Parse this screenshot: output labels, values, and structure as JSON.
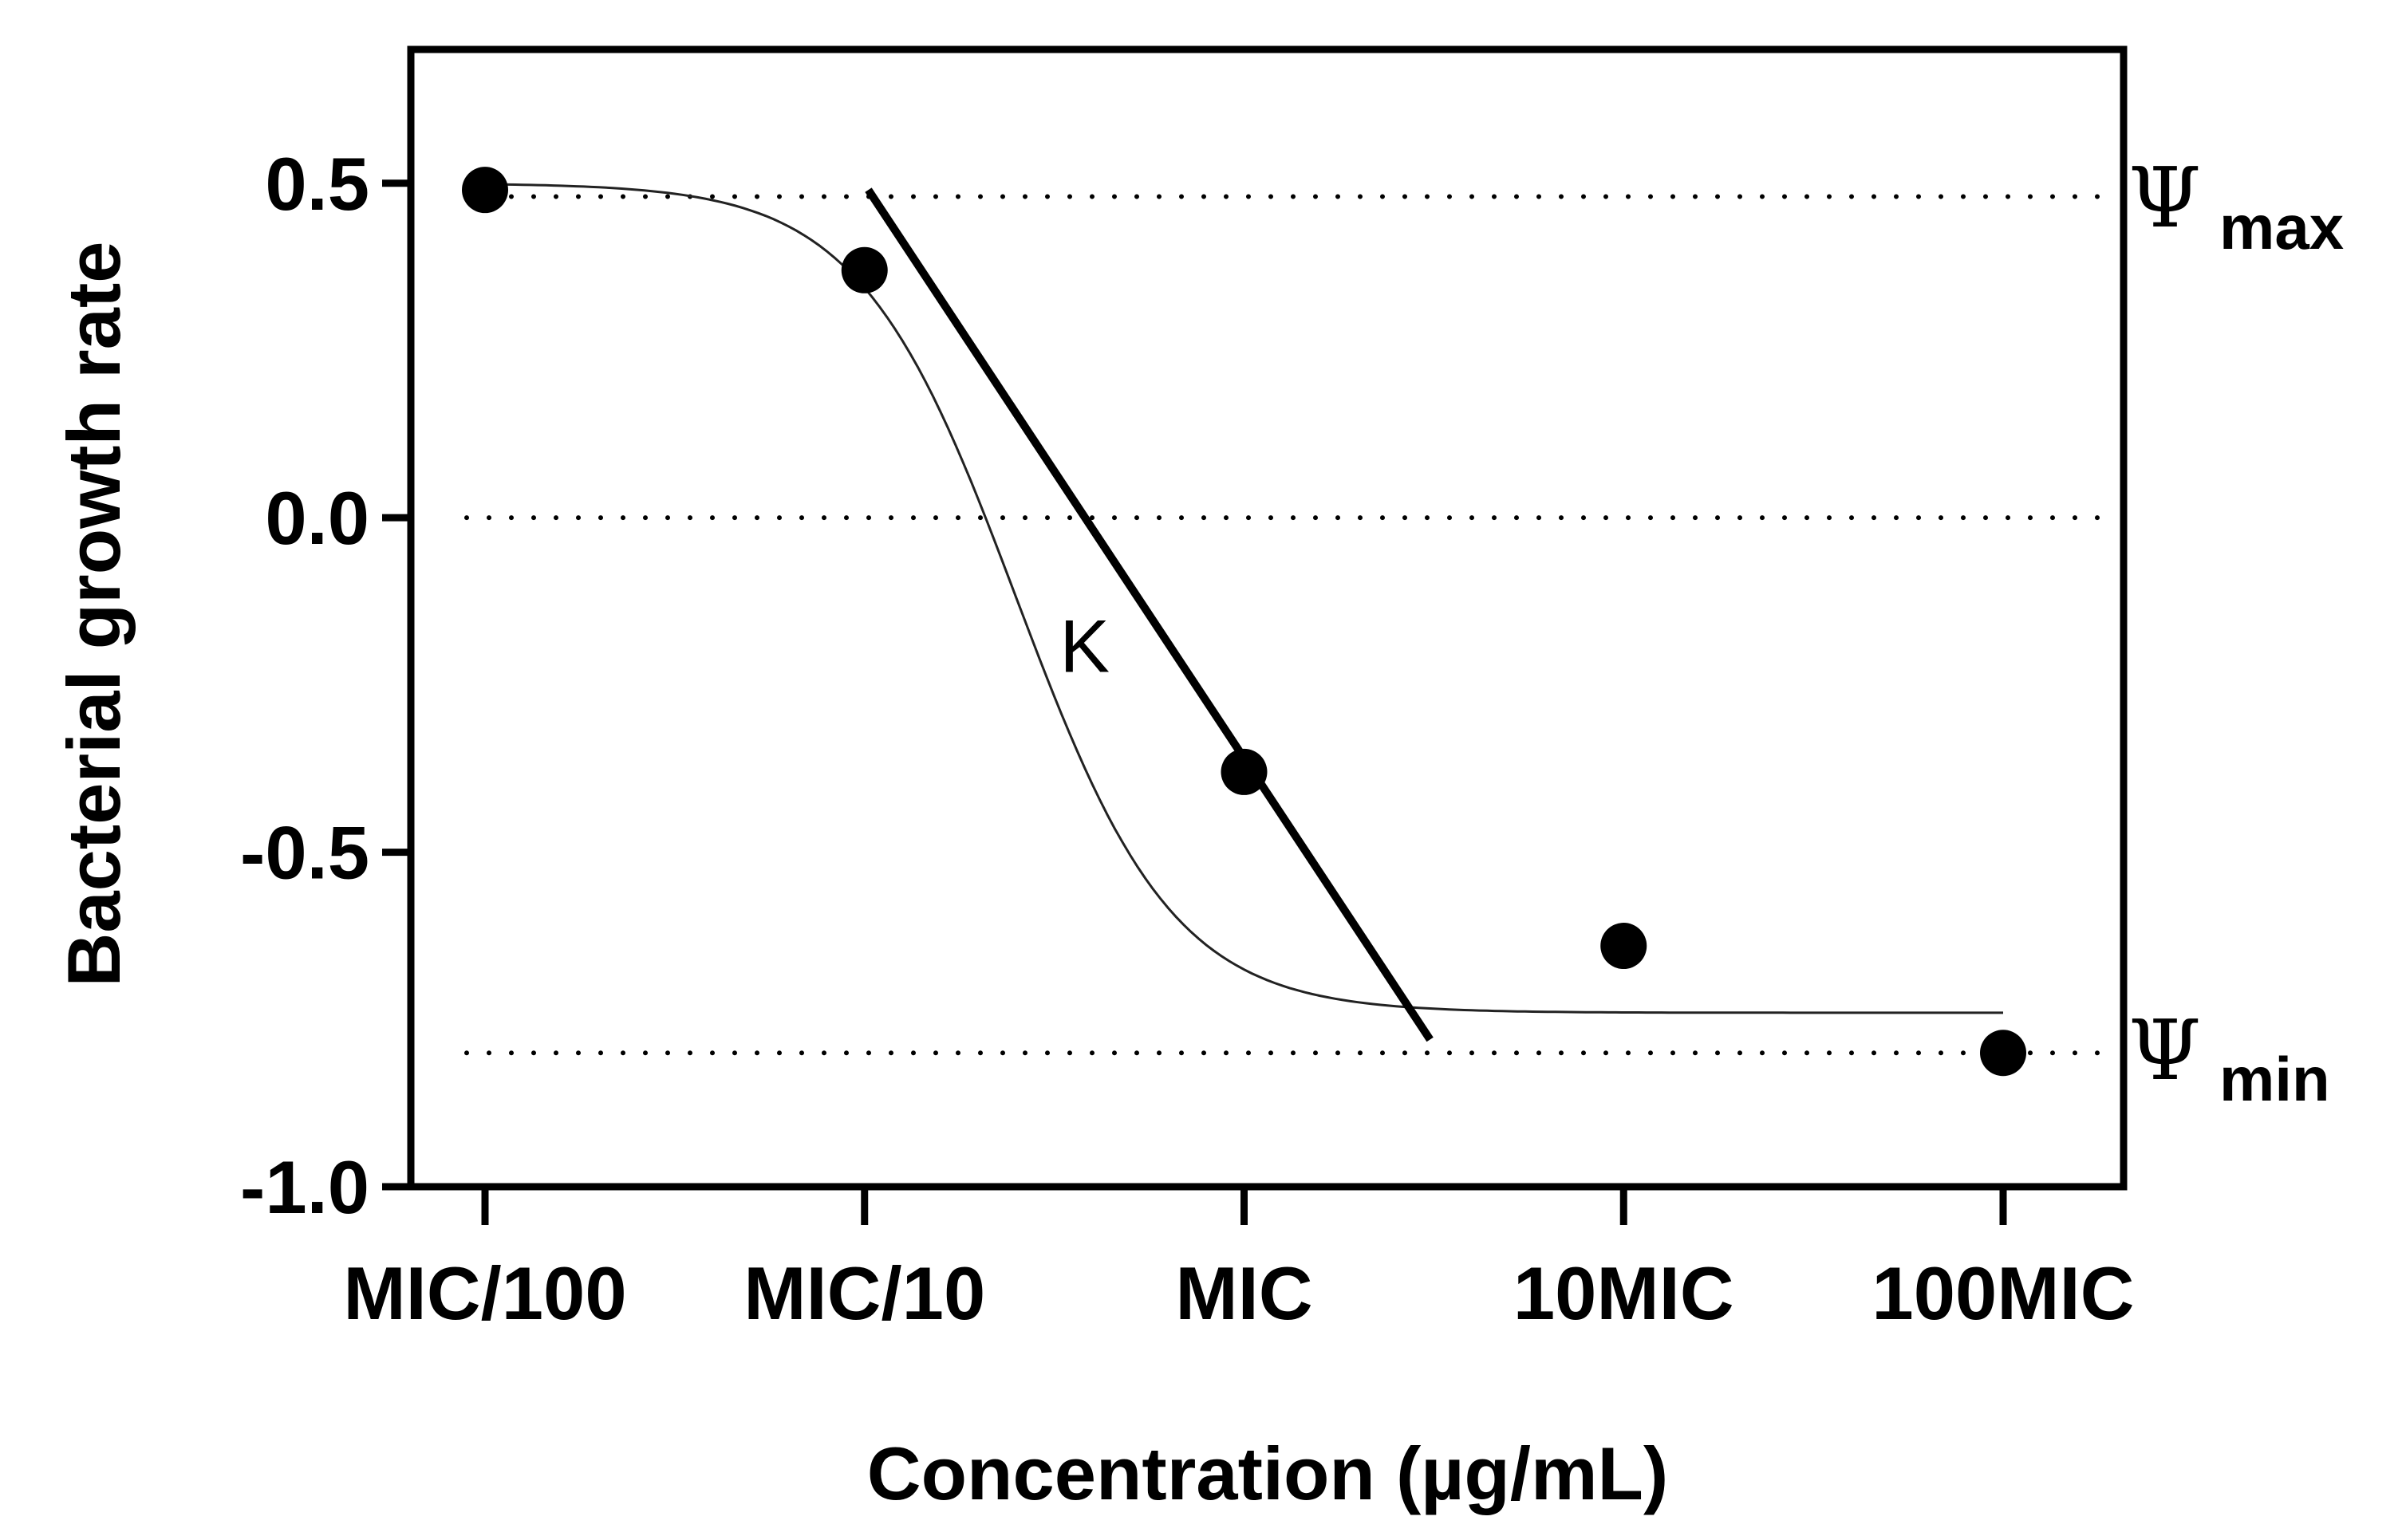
{
  "chart_data": {
    "type": "scatter",
    "x_scale": "log10",
    "categories": [
      "MIC/100",
      "MIC/10",
      "MIC",
      "10MIC",
      "100MIC"
    ],
    "xlabel": "Concentration (µg/mL)",
    "ylabel": "Bacterial growth rate",
    "ylim": [
      -1.0,
      0.7
    ],
    "yticks": [
      0.5,
      0.0,
      -0.5,
      -1.0
    ],
    "ytick_labels": [
      "0.5",
      "0.0",
      "-0.5",
      "-1.0"
    ],
    "grid": false,
    "series": [
      {
        "kind": "points",
        "x": [
          -2,
          -1,
          0,
          1,
          2
        ],
        "y": [
          0.49,
          0.37,
          -0.38,
          -0.64,
          -0.8
        ]
      },
      {
        "kind": "fitted-curve",
        "psi_max": 0.5,
        "psi_min": -0.74,
        "ec50_log10": -0.6,
        "hill": 2.1,
        "x_range": [
          -2,
          2
        ]
      },
      {
        "kind": "tangent-line",
        "x": [
          -0.99,
          0.49
        ],
        "y": [
          0.49,
          -0.78
        ]
      }
    ],
    "reference_lines": [
      {
        "y": 0.48,
        "label": "max"
      },
      {
        "y": 0.0,
        "label": ""
      },
      {
        "y": -0.8,
        "label": "min"
      }
    ],
    "annotations": {
      "psi_symbol": "Ψ",
      "psi_max_sub": "max",
      "psi_min_sub": "min",
      "slope_label": "K",
      "slope_label_at": [
        -0.42,
        -0.19
      ]
    }
  }
}
